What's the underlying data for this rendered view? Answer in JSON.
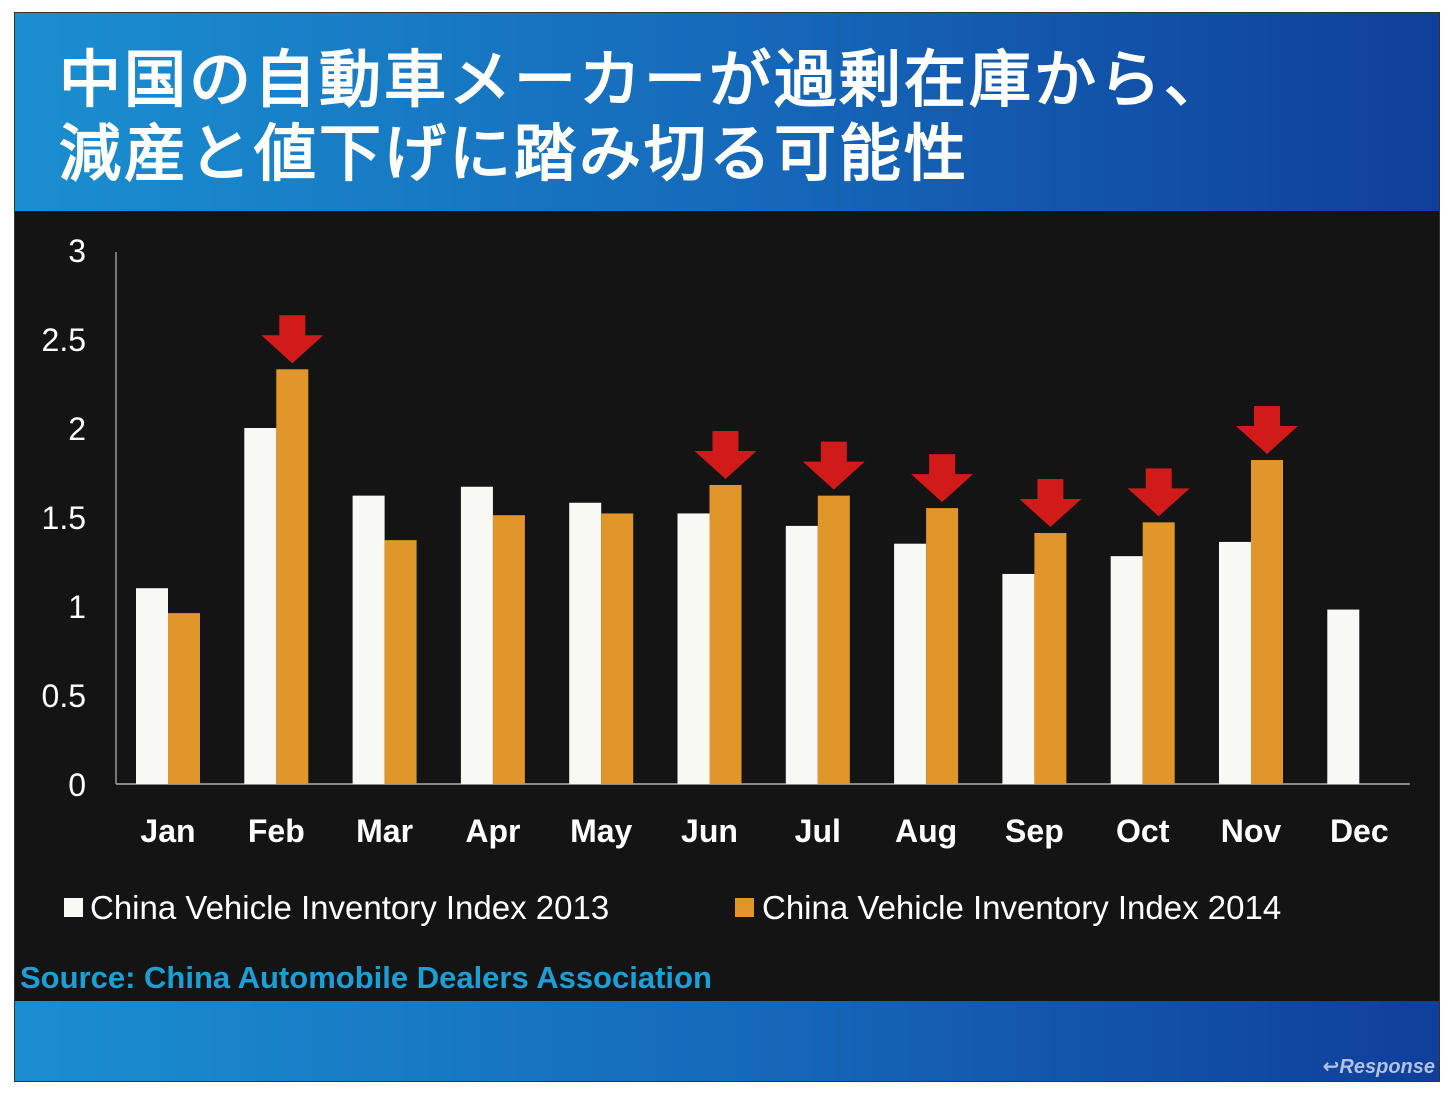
{
  "title_lines": [
    "中国の自動車メーカーが過剰在庫から、",
    "減産と値下げに踏み切る可能性"
  ],
  "watermark": "Response",
  "chart_data": {
    "type": "bar",
    "title": "中国の自動車メーカーが過剰在庫から、減産と値下げに踏み切る可能性",
    "categories": [
      "Jan",
      "Feb",
      "Mar",
      "Apr",
      "May",
      "Jun",
      "Jul",
      "Aug",
      "Sep",
      "Oct",
      "Nov",
      "Dec"
    ],
    "series": [
      {
        "name": "China Vehicle Inventory Index 2013",
        "color": "#f8f8f4",
        "values": [
          1.1,
          2.0,
          1.62,
          1.67,
          1.58,
          1.52,
          1.45,
          1.35,
          1.18,
          1.28,
          1.36,
          0.98
        ]
      },
      {
        "name": "China Vehicle Inventory Index 2014",
        "color": "#e0962a",
        "values": [
          0.96,
          2.33,
          1.37,
          1.51,
          1.52,
          1.68,
          1.62,
          1.55,
          1.41,
          1.47,
          1.82,
          null
        ]
      }
    ],
    "ylim": [
      0,
      3
    ],
    "yticks": [
      "0",
      "0.5",
      "1",
      "1.5",
      "2",
      "2.5",
      "3"
    ],
    "grid": false,
    "legend_position": "bottom",
    "annotations": {
      "type": "red-down-arrow",
      "color": "#d11a1a",
      "series": "China Vehicle Inventory Index 2014",
      "categories": [
        "Feb",
        "Jun",
        "Jul",
        "Aug",
        "Sep",
        "Oct",
        "Nov"
      ]
    },
    "source": "Source: China Automobile Dealers Association"
  }
}
